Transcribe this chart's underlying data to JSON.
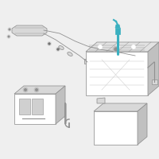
{
  "bg_color": "#efefef",
  "line_color": "#909090",
  "highlight_color": "#3ab0c0",
  "mid_gray": "#c0c0c0",
  "light_gray": "#d8d8d8",
  "white": "#ffffff",
  "dark_gray": "#707070"
}
